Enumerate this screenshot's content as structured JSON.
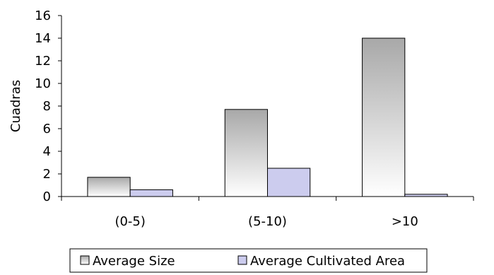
{
  "chart_data": {
    "type": "bar",
    "categories": [
      "(0-5)",
      "(5-10)",
      ">10"
    ],
    "series": [
      {
        "name": "Average Size",
        "values": [
          1.7,
          7.7,
          14.0
        ]
      },
      {
        "name": "Average Cultivated Area",
        "values": [
          0.6,
          2.5,
          0.2
        ]
      }
    ],
    "title": "",
    "xlabel": "",
    "ylabel": "Cuadras",
    "ylim": [
      0,
      16
    ],
    "yticks": [
      "0",
      "2",
      "4",
      "6",
      "8",
      "10",
      "12",
      "14",
      "16"
    ],
    "grid": false,
    "legend": "bottom",
    "colors": {
      "series_0_top": "#a8a8a8",
      "series_0_bottom": "#ffffff",
      "series_1": "#ccccee",
      "outline": "#000000",
      "axis": "#000000"
    }
  }
}
